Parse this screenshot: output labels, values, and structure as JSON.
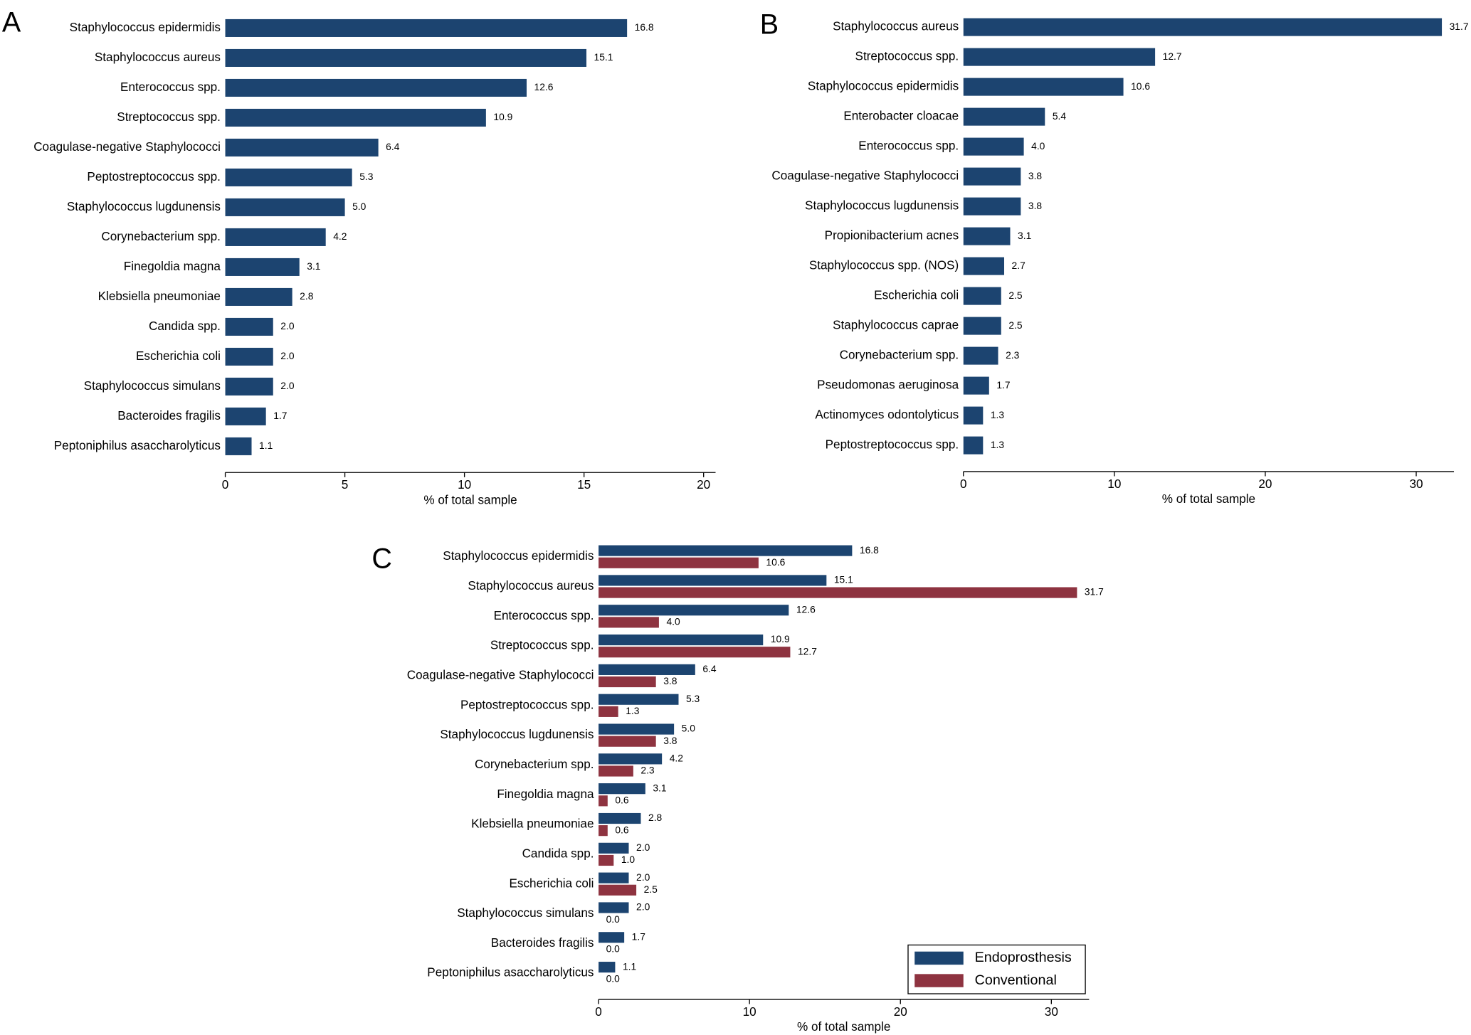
{
  "chart_data": [
    {
      "type": "bar",
      "orientation": "horizontal",
      "label": "A",
      "xlabel": "% of total sample",
      "categories": [
        "Staphylococcus epidermidis",
        "Staphylococcus aureus",
        "Enterococcus spp.",
        "Streptococcus spp.",
        "Coagulase-negative Staphylococci",
        "Peptostreptococcus spp.",
        "Staphylococcus lugdunensis",
        "Corynebacterium spp.",
        "Finegoldia magna",
        "Klebsiella pneumoniae",
        "Candida spp.",
        "Escherichia coli",
        "Staphylococcus simulans",
        "Bacteroides fragilis",
        "Peptoniphilus asaccharolyticus"
      ],
      "values": [
        16.8,
        15.1,
        12.6,
        10.9,
        6.4,
        5.3,
        5.0,
        4.2,
        3.1,
        2.8,
        2.0,
        2.0,
        2.0,
        1.7,
        1.1
      ],
      "value_labels": [
        "16.8",
        "15.1",
        "12.6",
        "10.9",
        "6.4",
        "5.3",
        "5.0",
        "4.2",
        "3.1",
        "2.8",
        "2.0",
        "2.0",
        "2.0",
        "1.7",
        "1.1"
      ],
      "color": "#1c4470",
      "xlim": [
        0,
        20.5
      ],
      "xticks": [
        0,
        5,
        10,
        15,
        20
      ]
    },
    {
      "type": "bar",
      "orientation": "horizontal",
      "label": "B",
      "xlabel": "% of total sample",
      "categories": [
        "Staphylococcus aureus",
        "Streptococcus spp.",
        "Staphylococcus epidermidis",
        "Enterobacter cloacae",
        "Enterococcus spp.",
        "Coagulase-negative Staphylococci",
        "Staphylococcus lugdunensis",
        "Propionibacterium acnes",
        "Staphylococcus spp. (NOS)",
        "Escherichia coli",
        "Staphylococcus caprae",
        "Corynebacterium spp.",
        "Pseudomonas aeruginosa",
        "Actinomyces odontolyticus",
        "Peptostreptococcus spp."
      ],
      "values": [
        31.7,
        12.7,
        10.6,
        5.4,
        4.0,
        3.8,
        3.8,
        3.1,
        2.7,
        2.5,
        2.5,
        2.3,
        1.7,
        1.3,
        1.3
      ],
      "value_labels": [
        "31.7",
        "12.7",
        "10.6",
        "5.4",
        "4.0",
        "3.8",
        "3.8",
        "3.1",
        "2.7",
        "2.5",
        "2.5",
        "2.3",
        "1.7",
        "1.3",
        "1.3"
      ],
      "color": "#1c4470",
      "xlim": [
        0,
        32.5
      ],
      "xticks": [
        0,
        10,
        20,
        30
      ]
    },
    {
      "type": "grouped_bar",
      "orientation": "horizontal",
      "label": "C",
      "xlabel": "% of total sample",
      "categories": [
        "Staphylococcus epidermidis",
        "Staphylococcus aureus",
        "Enterococcus spp.",
        "Streptococcus spp.",
        "Coagulase-negative Staphylococci",
        "Peptostreptococcus spp.",
        "Staphylococcus lugdunensis",
        "Corynebacterium spp.",
        "Finegoldia magna",
        "Klebsiella pneumoniae",
        "Candida spp.",
        "Escherichia coli",
        "Staphylococcus simulans",
        "Bacteroides fragilis",
        "Peptoniphilus asaccharolyticus"
      ],
      "series": [
        {
          "name": "Endoprosthesis",
          "color": "#1c4470",
          "values": [
            16.8,
            15.1,
            12.6,
            10.9,
            6.4,
            5.3,
            5.0,
            4.2,
            3.1,
            2.8,
            2.0,
            2.0,
            2.0,
            1.7,
            1.1
          ],
          "value_labels": [
            "16.8",
            "15.1",
            "12.6",
            "10.9",
            "6.4",
            "5.3",
            "5.0",
            "4.2",
            "3.1",
            "2.8",
            "2.0",
            "2.0",
            "2.0",
            "1.7",
            "1.1"
          ]
        },
        {
          "name": "Conventional",
          "color": "#8e3340",
          "values": [
            10.6,
            31.7,
            4.0,
            12.7,
            3.8,
            1.3,
            3.8,
            2.3,
            0.6,
            0.6,
            1.0,
            2.5,
            0.0,
            0.0,
            0.0
          ],
          "value_labels": [
            "10.6",
            "31.7",
            "4.0",
            "12.7",
            "3.8",
            "1.3",
            "3.8",
            "2.3",
            "0.6",
            "0.6",
            "1.0",
            "2.5",
            "0.0",
            "0.0",
            "0.0"
          ]
        }
      ],
      "xlim": [
        0,
        32.5
      ],
      "xticks": [
        0,
        10,
        20,
        30
      ],
      "legend": "lower right"
    }
  ]
}
